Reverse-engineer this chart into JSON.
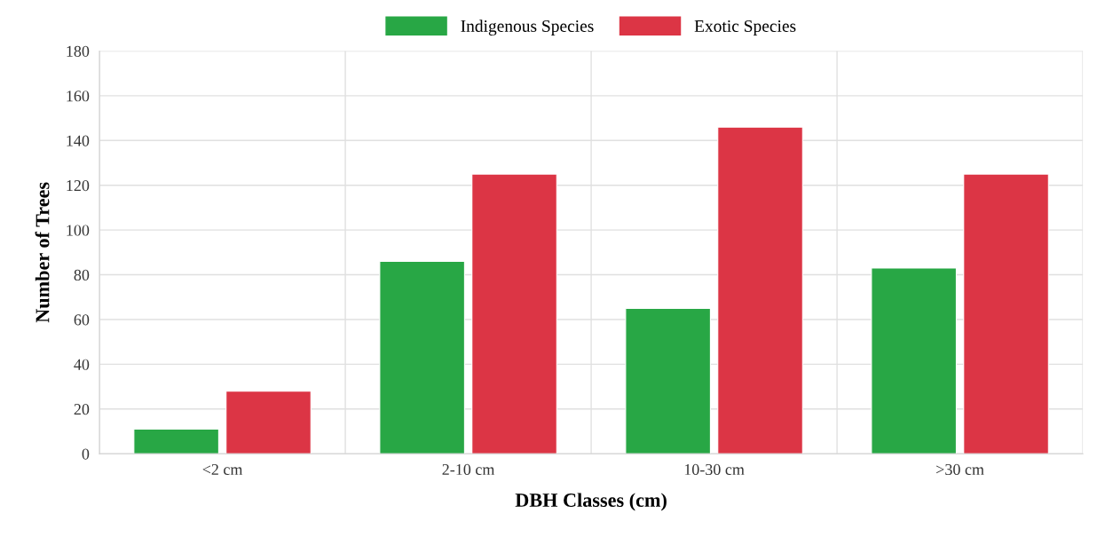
{
  "chart_data": {
    "type": "bar",
    "xlabel": "DBH Classes (cm)",
    "ylabel": "Number of Trees",
    "categories": [
      "<2 cm",
      "2-10 cm",
      "10-30 cm",
      ">30 cm"
    ],
    "series": [
      {
        "name": "Indigenous Species",
        "color": "#28a745",
        "values": [
          11,
          86,
          65,
          83
        ]
      },
      {
        "name": "Exotic Species",
        "color": "#dc3545",
        "values": [
          28,
          125,
          146,
          125
        ]
      }
    ],
    "ylim": [
      0,
      180
    ],
    "yticks": [
      0,
      20,
      40,
      60,
      80,
      100,
      120,
      140,
      160,
      180
    ],
    "grid": true,
    "legend": "top"
  }
}
